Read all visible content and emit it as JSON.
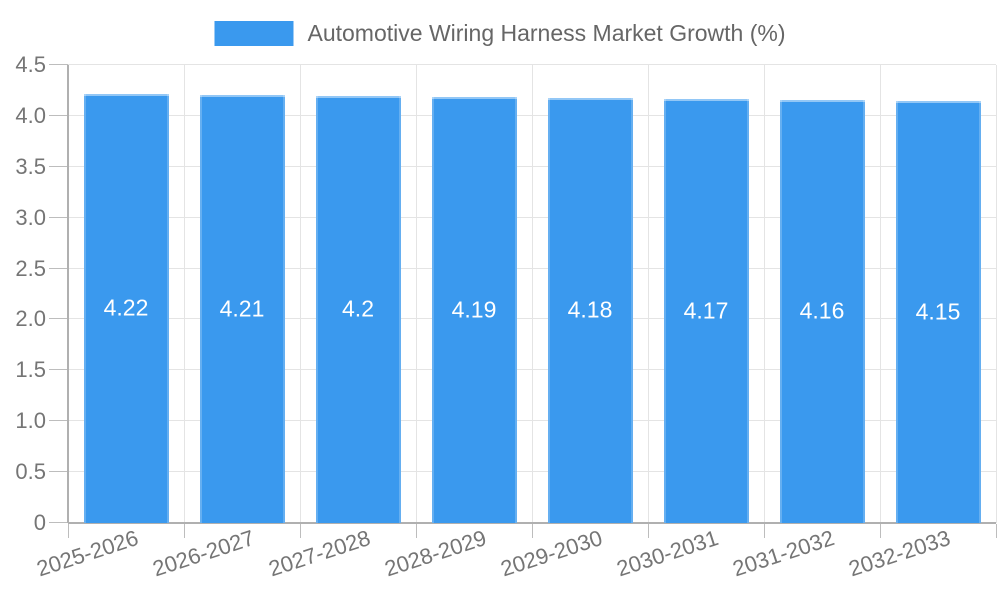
{
  "chart_data": {
    "type": "bar",
    "title": "Automotive Wiring Harness Market Growth (%)",
    "categories": [
      "2025-2026",
      "2026-2027",
      "2027-2028",
      "2028-2029",
      "2029-2030",
      "2030-2031",
      "2031-2032",
      "2032-2033"
    ],
    "values": [
      4.22,
      4.21,
      4.2,
      4.19,
      4.18,
      4.17,
      4.16,
      4.15
    ],
    "bar_labels": [
      "4.22",
      "4.21",
      "4.2",
      "4.19",
      "4.18",
      "4.17",
      "4.16",
      "4.15"
    ],
    "xlabel": "",
    "ylabel": "",
    "ylim": [
      0,
      4.5
    ],
    "y_tick_labels": [
      "0",
      "0.5",
      "1.0",
      "1.5",
      "2.0",
      "2.5",
      "3.0",
      "3.5",
      "4.0",
      "4.5"
    ],
    "grid": true,
    "legend": {
      "position": "top",
      "label": "Automotive Wiring Harness Market Growth (%)"
    },
    "colors": {
      "background": "#ffffff",
      "bar_fill": "#3a99ee",
      "bar_value_text": "#ffffff",
      "axis_line": "#b0b0b0",
      "grid_line": "#e4e4e4",
      "tick_line": "#bdbdbd",
      "tick_text": "#757575",
      "legend_text": "#666666"
    }
  }
}
